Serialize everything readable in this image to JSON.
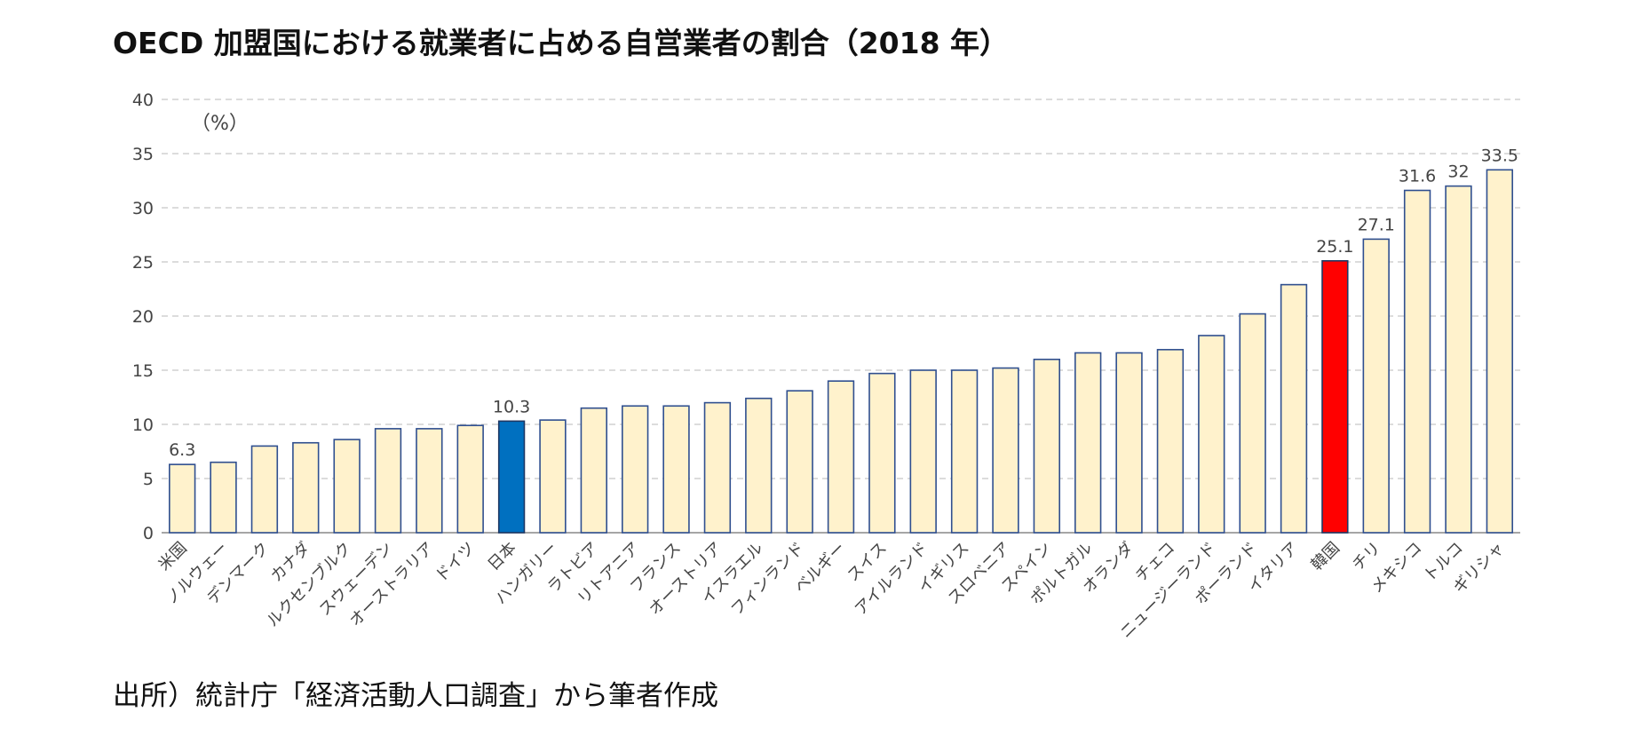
{
  "chart_data": {
    "type": "bar",
    "title": "OECD 加盟国における就業者に占める自営業者の割合（2018 年）",
    "unit_label": "（%）",
    "source": "出所）統計庁「経済活動人口調査」から筆者作成",
    "ylim": [
      0,
      40
    ],
    "yticks": [
      "0",
      "5",
      "10",
      "15",
      "20",
      "25",
      "30",
      "35",
      "40"
    ],
    "grid": true,
    "legend": "none",
    "categories": [
      "米国",
      "ノルウェー",
      "デンマーク",
      "カナダ",
      "ルクセンブルク",
      "スウェーデン",
      "オーストラリア",
      "ドイツ",
      "日本",
      "ハンガリー",
      "ラトビア",
      "リトアニア",
      "フランス",
      "オーストリア",
      "イスラエル",
      "フィンランド",
      "ベルギー",
      "スイス",
      "アイルランド",
      "イギリス",
      "スロベニア",
      "スペイン",
      "ポルトガル",
      "オランダ",
      "チェコ",
      "ニュージーランド",
      "ポーランド",
      "イタリア",
      "韓国",
      "チリ",
      "メキシコ",
      "トルコ",
      "ギリシャ"
    ],
    "values": [
      6.3,
      6.5,
      8.0,
      8.3,
      8.6,
      9.6,
      9.6,
      9.9,
      10.3,
      10.4,
      11.5,
      11.7,
      11.7,
      12.0,
      12.4,
      13.1,
      14.0,
      14.7,
      15.0,
      15.0,
      15.2,
      16.0,
      16.6,
      16.6,
      16.9,
      18.2,
      20.2,
      22.9,
      25.1,
      27.1,
      31.6,
      32.0,
      33.5
    ],
    "data_labels": {
      "0": "6.3",
      "8": "10.3",
      "28": "25.1",
      "29": "27.1",
      "30": "31.6",
      "31": "32",
      "32": "33.5"
    },
    "colors": {
      "default_fill": "#FFF2CC",
      "default_stroke": "#2F4F8F",
      "highlight_japan": "#0070C0",
      "highlight_korea": "#FF0000",
      "grid": "#C8C8C8"
    },
    "highlights": {
      "8": "highlight_japan",
      "28": "highlight_korea"
    }
  }
}
